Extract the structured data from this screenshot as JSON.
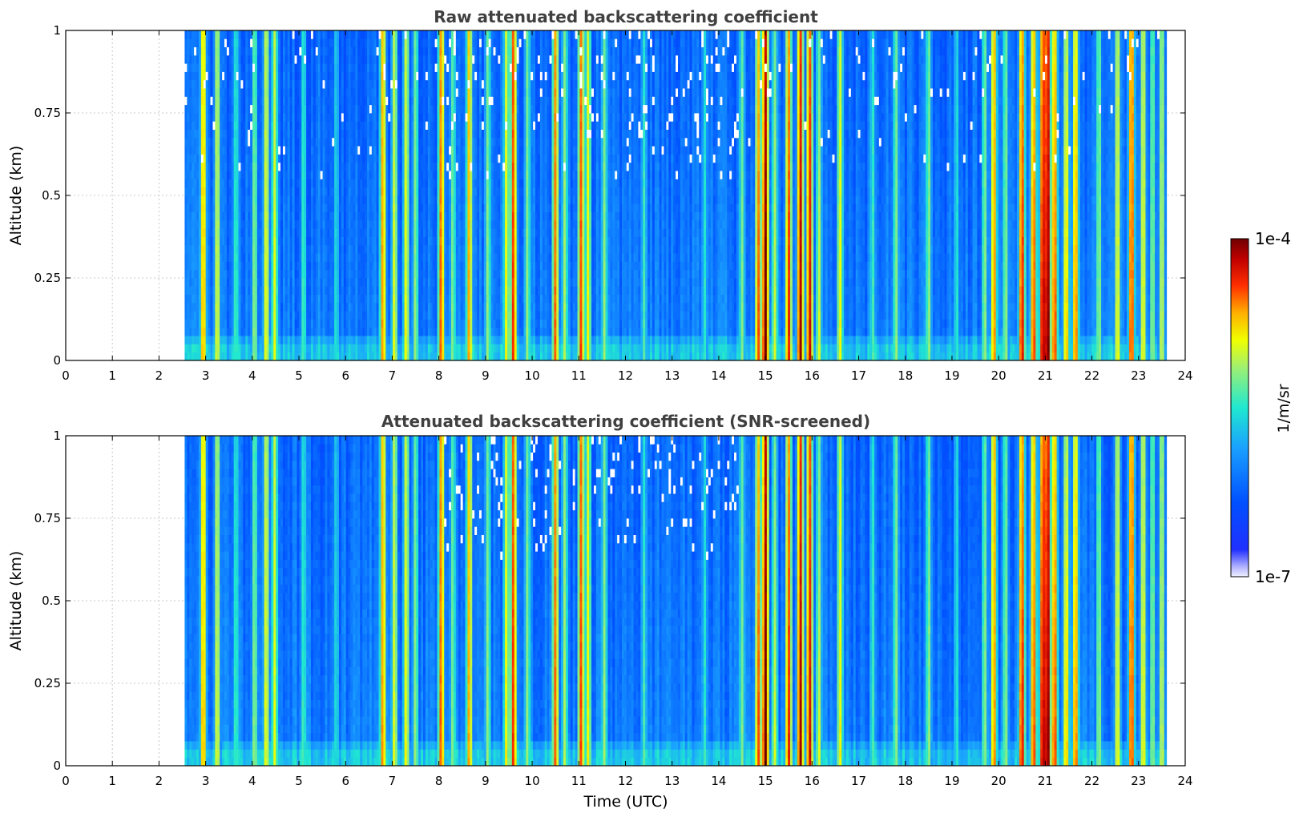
{
  "chart_data": [
    {
      "type": "heatmap",
      "title": "Raw attenuated backscattering coefficient",
      "xlabel": "",
      "ylabel": "Altitude (km)",
      "xlim": [
        0,
        24
      ],
      "ylim": [
        0,
        1
      ],
      "x_ticks": [
        "0",
        "1",
        "2",
        "3",
        "4",
        "5",
        "6",
        "7",
        "8",
        "9",
        "10",
        "11",
        "12",
        "13",
        "14",
        "15",
        "16",
        "17",
        "18",
        "19",
        "20",
        "21",
        "22",
        "23",
        "24"
      ],
      "y_ticks": [
        "0",
        "0.25",
        "0.5",
        "0.75",
        "1"
      ],
      "grid": true,
      "data_start_utc": 2.55,
      "data_end_utc": 23.6,
      "screened": false
    },
    {
      "type": "heatmap",
      "title": "Attenuated backscattering coefficient (SNR-screened)",
      "xlabel": "Time (UTC)",
      "ylabel": "Altitude (km)",
      "xlim": [
        0,
        24
      ],
      "ylim": [
        0,
        1
      ],
      "x_ticks": [
        "0",
        "1",
        "2",
        "3",
        "4",
        "5",
        "6",
        "7",
        "8",
        "9",
        "10",
        "11",
        "12",
        "13",
        "14",
        "15",
        "16",
        "17",
        "18",
        "19",
        "20",
        "21",
        "22",
        "23",
        "24"
      ],
      "y_ticks": [
        "0",
        "0.25",
        "0.5",
        "0.75",
        "1"
      ],
      "grid": true,
      "data_start_utc": 2.55,
      "data_end_utc": 23.6,
      "screened": true
    }
  ],
  "colorbar": {
    "label": "1/m/sr",
    "max_label": "1e-4",
    "min_label": "1e-7",
    "scale": "log",
    "range": [
      1e-07,
      0.0001
    ]
  },
  "backscatter_features": [
    {
      "t": 2.95,
      "level": 0.8
    },
    {
      "t": 3.25,
      "level": 0.7
    },
    {
      "t": 3.65,
      "level": 0.55
    },
    {
      "t": 4.05,
      "level": 0.62
    },
    {
      "t": 4.3,
      "level": 0.72
    },
    {
      "t": 4.48,
      "level": 0.7
    },
    {
      "t": 5.1,
      "level": 0.55
    },
    {
      "t": 5.8,
      "level": 0.5
    },
    {
      "t": 6.8,
      "level": 0.82
    },
    {
      "t": 7.05,
      "level": 0.7
    },
    {
      "t": 7.3,
      "level": 0.72
    },
    {
      "t": 7.5,
      "level": 0.62
    },
    {
      "t": 8.05,
      "level": 0.85
    },
    {
      "t": 8.3,
      "level": 0.6
    },
    {
      "t": 8.65,
      "level": 0.8
    },
    {
      "t": 9.05,
      "level": 0.62
    },
    {
      "t": 9.45,
      "level": 0.72
    },
    {
      "t": 9.6,
      "level": 0.88
    },
    {
      "t": 9.9,
      "level": 0.62
    },
    {
      "t": 10.5,
      "level": 0.84
    },
    {
      "t": 10.7,
      "level": 0.64
    },
    {
      "t": 11.05,
      "level": 0.86
    },
    {
      "t": 11.2,
      "level": 0.72
    },
    {
      "t": 11.55,
      "level": 0.62
    },
    {
      "t": 12.4,
      "level": 0.55
    },
    {
      "t": 13.7,
      "level": 0.52
    },
    {
      "t": 14.5,
      "level": 0.6
    },
    {
      "t": 14.85,
      "level": 0.8
    },
    {
      "t": 15.0,
      "level": 0.97
    },
    {
      "t": 15.2,
      "level": 0.62
    },
    {
      "t": 15.5,
      "level": 0.84
    },
    {
      "t": 15.75,
      "level": 0.92
    },
    {
      "t": 15.95,
      "level": 0.88
    },
    {
      "t": 16.15,
      "level": 0.62
    },
    {
      "t": 16.6,
      "level": 0.72
    },
    {
      "t": 17.3,
      "level": 0.55
    },
    {
      "t": 17.8,
      "level": 0.62
    },
    {
      "t": 18.5,
      "level": 0.62
    },
    {
      "t": 19.1,
      "level": 0.52
    },
    {
      "t": 19.7,
      "level": 0.62
    },
    {
      "t": 19.9,
      "level": 0.82
    },
    {
      "t": 20.15,
      "level": 0.62
    },
    {
      "t": 20.5,
      "level": 0.86
    },
    {
      "t": 20.75,
      "level": 0.82
    },
    {
      "t": 20.95,
      "level": 0.92
    },
    {
      "t": 21.05,
      "level": 0.97
    },
    {
      "t": 21.2,
      "level": 0.82
    },
    {
      "t": 21.45,
      "level": 0.72
    },
    {
      "t": 21.65,
      "level": 0.78
    },
    {
      "t": 22.15,
      "level": 0.62
    },
    {
      "t": 22.55,
      "level": 0.72
    },
    {
      "t": 22.85,
      "level": 0.88
    },
    {
      "t": 23.1,
      "level": 0.72
    },
    {
      "t": 23.3,
      "level": 0.62
    },
    {
      "t": 23.5,
      "level": 0.68
    }
  ]
}
